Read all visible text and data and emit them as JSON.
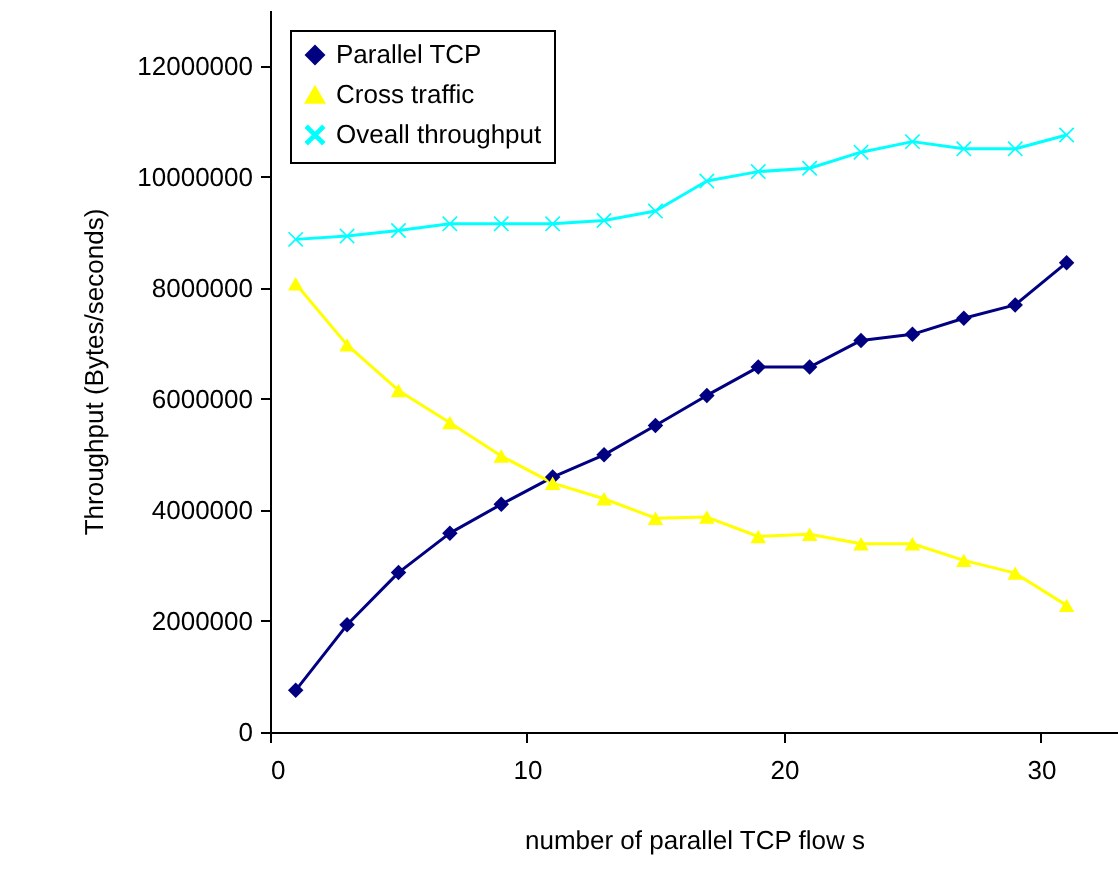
{
  "chart_data": {
    "type": "line",
    "xlabel": "number of parallel TCP flow s",
    "ylabel": "Throughput (Bytes/seconds)",
    "x": [
      1,
      3,
      5,
      7,
      9,
      11,
      13,
      15,
      17,
      19,
      21,
      23,
      25,
      27,
      29,
      31
    ],
    "series": [
      {
        "name": "Parallel TCP",
        "color": "#000080",
        "marker": "diamond",
        "values": [
          750000,
          1930000,
          2870000,
          3580000,
          4100000,
          4590000,
          4990000,
          5520000,
          6060000,
          6570000,
          6570000,
          7050000,
          7160000,
          7450000,
          7690000,
          8450000
        ]
      },
      {
        "name": "Cross traffic",
        "color": "#ffff00",
        "marker": "triangle",
        "values": [
          8070000,
          6970000,
          6150000,
          5570000,
          4970000,
          4480000,
          4200000,
          3850000,
          3870000,
          3520000,
          3560000,
          3390000,
          3390000,
          3090000,
          2860000,
          2280000
        ]
      },
      {
        "name": "Oveall throughput",
        "color": "#00ffff",
        "marker": "cross",
        "values": [
          8870000,
          8930000,
          9030000,
          9150000,
          9150000,
          9150000,
          9210000,
          9380000,
          9920000,
          10090000,
          10150000,
          10440000,
          10630000,
          10500000,
          10500000,
          10750000
        ]
      }
    ],
    "xlim": [
      0,
      33
    ],
    "xticks": [
      0,
      10,
      20,
      30
    ],
    "ylim": [
      0,
      13000000
    ],
    "yticks": [
      0,
      2000000,
      4000000,
      6000000,
      8000000,
      10000000,
      12000000
    ],
    "legend": "top left"
  }
}
